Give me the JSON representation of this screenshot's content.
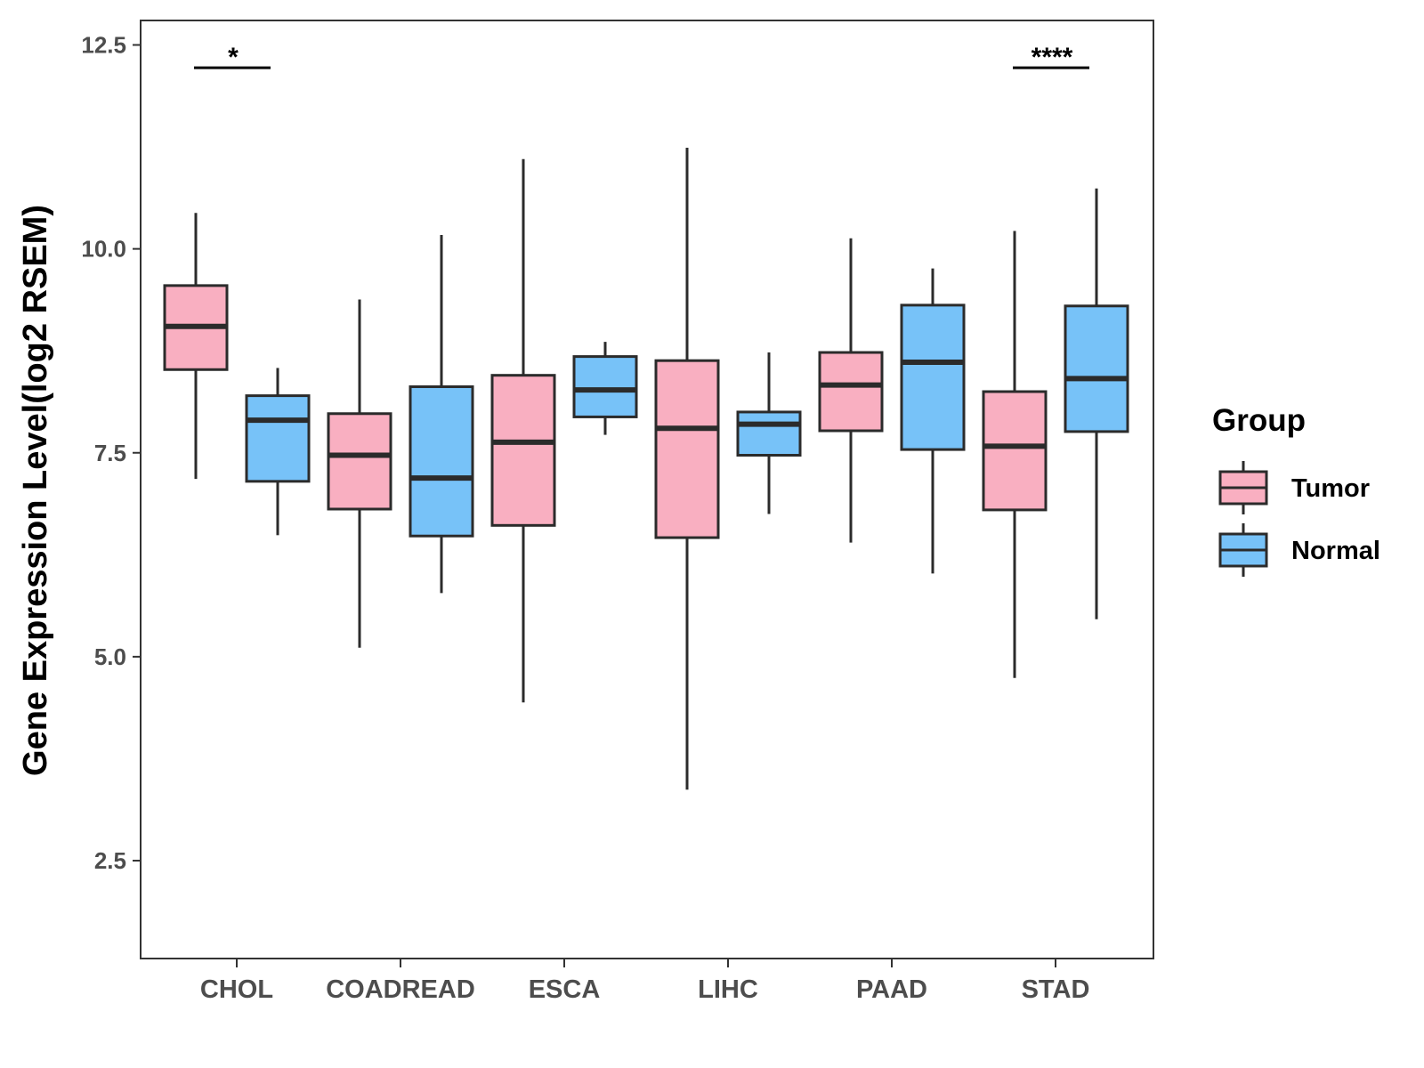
{
  "chart_data": {
    "type": "boxplot",
    "title": "",
    "xlabel": "",
    "ylabel": "Gene Expression Level(log2 RSEM)",
    "ylim": [
      1.3,
      12.8
    ],
    "yticks": [
      "2.5",
      "5.0",
      "7.5",
      "10.0",
      "12.5"
    ],
    "categories": [
      "CHOL",
      "COADREAD",
      "ESCA",
      "LIHC",
      "PAAD",
      "STAD"
    ],
    "legend": {
      "title": "Group",
      "position": "right"
    },
    "series": [
      {
        "name": "Tumor",
        "color": "#F9AFC1",
        "boxes": [
          {
            "category": "CHOL",
            "min": 7.18,
            "q1": 8.52,
            "median": 9.05,
            "q3": 9.55,
            "max": 10.44
          },
          {
            "category": "COADREAD",
            "min": 5.11,
            "q1": 6.81,
            "median": 7.47,
            "q3": 7.98,
            "max": 9.38
          },
          {
            "category": "ESCA",
            "min": 4.44,
            "q1": 6.61,
            "median": 7.63,
            "q3": 8.45,
            "max": 11.1
          },
          {
            "category": "LIHC",
            "min": 3.37,
            "q1": 6.46,
            "median": 7.8,
            "q3": 8.63,
            "max": 11.24
          },
          {
            "category": "PAAD",
            "min": 6.4,
            "q1": 7.77,
            "median": 8.33,
            "q3": 8.73,
            "max": 10.13
          },
          {
            "category": "STAD",
            "min": 4.74,
            "q1": 6.8,
            "median": 7.58,
            "q3": 8.25,
            "max": 10.22
          }
        ]
      },
      {
        "name": "Normal",
        "color": "#77C2F8",
        "boxes": [
          {
            "category": "CHOL",
            "min": 6.49,
            "q1": 7.15,
            "median": 7.9,
            "q3": 8.2,
            "max": 8.54
          },
          {
            "category": "COADREAD",
            "min": 5.78,
            "q1": 6.48,
            "median": 7.19,
            "q3": 8.31,
            "max": 10.17
          },
          {
            "category": "ESCA",
            "min": 7.72,
            "q1": 7.94,
            "median": 8.27,
            "q3": 8.68,
            "max": 8.86
          },
          {
            "category": "LIHC",
            "min": 6.75,
            "q1": 7.47,
            "median": 7.85,
            "q3": 8.0,
            "max": 8.73
          },
          {
            "category": "PAAD",
            "min": 6.02,
            "q1": 7.54,
            "median": 8.61,
            "q3": 9.31,
            "max": 9.76
          },
          {
            "category": "STAD",
            "min": 5.46,
            "q1": 7.76,
            "median": 8.41,
            "q3": 9.3,
            "max": 10.74
          }
        ]
      }
    ],
    "significance": [
      {
        "category": "CHOL",
        "label": "*",
        "y": 12.22
      },
      {
        "category": "STAD",
        "label": "****",
        "y": 12.22
      }
    ]
  }
}
